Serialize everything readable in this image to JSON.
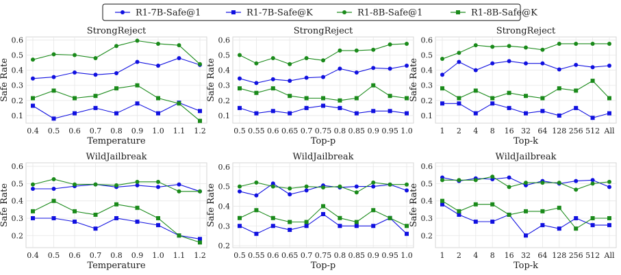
{
  "legend": {
    "entries": [
      {
        "name": "R1-7B-Safe@1",
        "color": "#1010e0",
        "marker": "circle"
      },
      {
        "name": "R1-7B-Safe@K",
        "color": "#1010e0",
        "marker": "square"
      },
      {
        "name": "R1-8B-Safe@1",
        "color": "#1a8a1a",
        "marker": "circle"
      },
      {
        "name": "R1-8B-Safe@K",
        "color": "#1a8a1a",
        "marker": "square"
      }
    ]
  },
  "chart_data": [
    {
      "type": "line",
      "title": "StrongReject",
      "xlabel": "Temperature",
      "ylabel": "Safe Rate",
      "categories": [
        "0.4",
        "0.5",
        "0.6",
        "0.7",
        "0.8",
        "0.9",
        "1.0",
        "1.1",
        "1.2"
      ],
      "ylim": [
        0.05,
        0.62
      ],
      "yticks": [
        "0.1",
        "0.2",
        "0.3",
        "0.4",
        "0.5",
        "0.6"
      ],
      "grid": true,
      "series": [
        {
          "name": "R1-7B-Safe@1",
          "values": [
            0.345,
            0.355,
            0.385,
            0.37,
            0.38,
            0.455,
            0.43,
            0.48,
            0.435
          ]
        },
        {
          "name": "R1-7B-Safe@K",
          "values": [
            0.165,
            0.08,
            0.115,
            0.15,
            0.115,
            0.18,
            0.115,
            0.185,
            0.13
          ]
        },
        {
          "name": "R1-8B-Safe@1",
          "values": [
            0.47,
            0.505,
            0.5,
            0.48,
            0.56,
            0.595,
            0.575,
            0.565,
            0.44
          ]
        },
        {
          "name": "R1-8B-Safe@K",
          "values": [
            0.215,
            0.265,
            0.215,
            0.23,
            0.28,
            0.3,
            0.215,
            0.18,
            0.065
          ]
        }
      ]
    },
    {
      "type": "line",
      "title": "StrongReject",
      "xlabel": "Top-p",
      "ylabel": "Safe Rate",
      "categories": [
        "0.5",
        "0.55",
        "0.6",
        "0.65",
        "0.7",
        "0.75",
        "0.8",
        "0.85",
        "0.9",
        "0.95",
        "1.0"
      ],
      "ylim": [
        0.05,
        0.62
      ],
      "yticks": [
        "0.1",
        "0.2",
        "0.3",
        "0.4",
        "0.5",
        "0.6"
      ],
      "grid": true,
      "series": [
        {
          "name": "R1-7B-Safe@1",
          "values": [
            0.345,
            0.315,
            0.34,
            0.33,
            0.35,
            0.355,
            0.41,
            0.385,
            0.415,
            0.41,
            0.43
          ]
        },
        {
          "name": "R1-7B-Safe@K",
          "values": [
            0.15,
            0.115,
            0.13,
            0.115,
            0.15,
            0.165,
            0.15,
            0.115,
            0.13,
            0.13,
            0.115
          ]
        },
        {
          "name": "R1-8B-Safe@1",
          "values": [
            0.5,
            0.445,
            0.48,
            0.44,
            0.48,
            0.465,
            0.53,
            0.53,
            0.535,
            0.57,
            0.575
          ]
        },
        {
          "name": "R1-8B-Safe@K",
          "values": [
            0.28,
            0.25,
            0.28,
            0.23,
            0.215,
            0.215,
            0.2,
            0.215,
            0.3,
            0.23,
            0.215
          ]
        }
      ]
    },
    {
      "type": "line",
      "title": "StrongReject",
      "xlabel": "Top-k",
      "ylabel": "Safe Rate",
      "categories": [
        "1",
        "2",
        "4",
        "8",
        "16",
        "32",
        "64",
        "128",
        "256",
        "512",
        "All"
      ],
      "ylim": [
        0.05,
        0.62
      ],
      "yticks": [
        "0.1",
        "0.2",
        "0.3",
        "0.4",
        "0.5",
        "0.6"
      ],
      "grid": true,
      "series": [
        {
          "name": "R1-7B-Safe@1",
          "values": [
            0.37,
            0.455,
            0.4,
            0.445,
            0.46,
            0.445,
            0.445,
            0.405,
            0.435,
            0.42,
            0.43
          ]
        },
        {
          "name": "R1-7B-Safe@K",
          "values": [
            0.18,
            0.18,
            0.115,
            0.18,
            0.15,
            0.115,
            0.13,
            0.1,
            0.15,
            0.085,
            0.115
          ]
        },
        {
          "name": "R1-8B-Safe@1",
          "values": [
            0.475,
            0.515,
            0.565,
            0.555,
            0.56,
            0.55,
            0.535,
            0.575,
            0.575,
            0.575,
            0.575
          ]
        },
        {
          "name": "R1-8B-Safe@K",
          "values": [
            0.28,
            0.215,
            0.265,
            0.215,
            0.25,
            0.23,
            0.215,
            0.28,
            0.265,
            0.33,
            0.215
          ]
        }
      ]
    },
    {
      "type": "line",
      "title": "WildJailbreak",
      "xlabel": "Temperature",
      "ylabel": "Safe Rate",
      "categories": [
        "0.4",
        "0.5",
        "0.6",
        "0.7",
        "0.8",
        "0.9",
        "1.0",
        "1.1",
        "1.2"
      ],
      "ylim": [
        0.13,
        0.62
      ],
      "yticks": [
        "0.2",
        "0.3",
        "0.4",
        "0.5",
        "0.6"
      ],
      "grid": true,
      "series": [
        {
          "name": "R1-7B-Safe@1",
          "values": [
            0.47,
            0.47,
            0.485,
            0.495,
            0.48,
            0.49,
            0.48,
            0.495,
            0.455
          ]
        },
        {
          "name": "R1-7B-Safe@K",
          "values": [
            0.3,
            0.3,
            0.28,
            0.24,
            0.3,
            0.28,
            0.26,
            0.2,
            0.18
          ]
        },
        {
          "name": "R1-8B-Safe@1",
          "values": [
            0.495,
            0.525,
            0.495,
            0.495,
            0.49,
            0.51,
            0.51,
            0.455,
            0.455
          ]
        },
        {
          "name": "R1-8B-Safe@K",
          "values": [
            0.34,
            0.4,
            0.34,
            0.32,
            0.38,
            0.36,
            0.3,
            0.2,
            0.16
          ]
        }
      ]
    },
    {
      "type": "line",
      "title": "WildJailbreak",
      "xlabel": "Top-p",
      "ylabel": "Safe Rate",
      "categories": [
        "0.5",
        "0.55",
        "0.6",
        "0.65",
        "0.7",
        "0.75",
        "0.8",
        "0.85",
        "0.9",
        "0.95",
        "1.0"
      ],
      "ylim": [
        0.19,
        0.62
      ],
      "yticks": [
        "0.2",
        "0.3",
        "0.4",
        "0.5",
        "0.6"
      ],
      "grid": true,
      "series": [
        {
          "name": "R1-7B-Safe@1",
          "values": [
            0.475,
            0.455,
            0.515,
            0.46,
            0.48,
            0.505,
            0.495,
            0.5,
            0.5,
            0.51,
            0.48
          ]
        },
        {
          "name": "R1-7B-Safe@K",
          "values": [
            0.3,
            0.26,
            0.3,
            0.28,
            0.3,
            0.36,
            0.3,
            0.3,
            0.3,
            0.34,
            0.26
          ]
        },
        {
          "name": "R1-8B-Safe@1",
          "values": [
            0.5,
            0.52,
            0.5,
            0.49,
            0.5,
            0.495,
            0.5,
            0.47,
            0.52,
            0.51,
            0.51
          ]
        },
        {
          "name": "R1-8B-Safe@K",
          "values": [
            0.34,
            0.38,
            0.34,
            0.32,
            0.32,
            0.4,
            0.34,
            0.32,
            0.38,
            0.34,
            0.3
          ]
        }
      ]
    },
    {
      "type": "line",
      "title": "WildJailbreak",
      "xlabel": "Top-k",
      "ylabel": "Safe Rate",
      "categories": [
        "1",
        "2",
        "4",
        "8",
        "16",
        "32",
        "64",
        "128",
        "256",
        "512",
        "All"
      ],
      "ylim": [
        0.13,
        0.62
      ],
      "yticks": [
        "0.2",
        "0.3",
        "0.4",
        "0.5",
        "0.6"
      ],
      "grid": true,
      "series": [
        {
          "name": "R1-7B-Safe@1",
          "values": [
            0.535,
            0.515,
            0.53,
            0.525,
            0.535,
            0.49,
            0.515,
            0.5,
            0.515,
            0.52,
            0.48
          ]
        },
        {
          "name": "R1-7B-Safe@K",
          "values": [
            0.38,
            0.32,
            0.28,
            0.28,
            0.32,
            0.2,
            0.26,
            0.24,
            0.3,
            0.26,
            0.26
          ]
        },
        {
          "name": "R1-8B-Safe@1",
          "values": [
            0.52,
            0.52,
            0.52,
            0.54,
            0.48,
            0.505,
            0.505,
            0.505,
            0.465,
            0.5,
            0.51
          ]
        },
        {
          "name": "R1-8B-Safe@K",
          "values": [
            0.4,
            0.34,
            0.38,
            0.38,
            0.32,
            0.34,
            0.34,
            0.36,
            0.24,
            0.3,
            0.3
          ]
        }
      ]
    }
  ]
}
